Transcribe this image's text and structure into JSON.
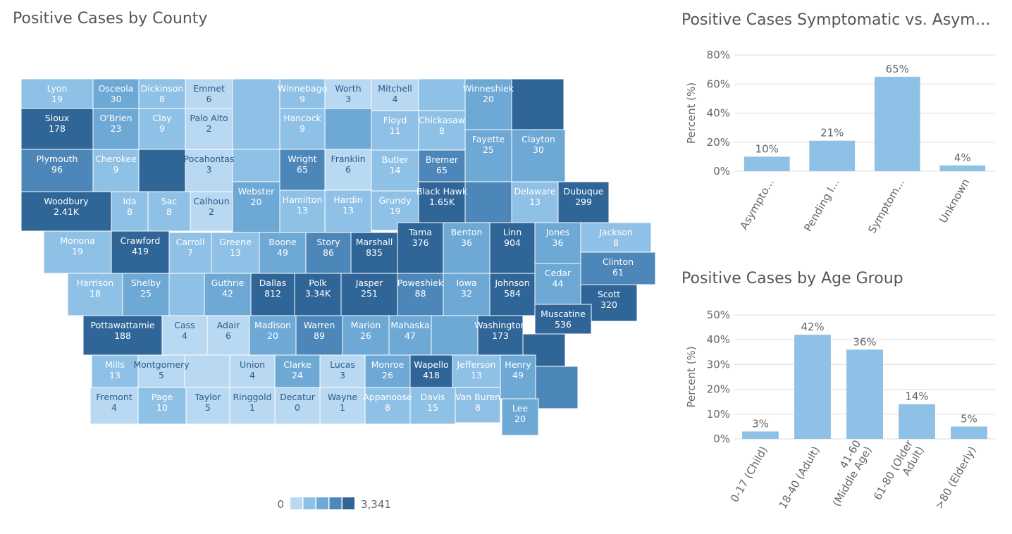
{
  "titles": {
    "map": "Positive Cases by County",
    "symptom": "Positive Cases Symptomatic vs. Asympto...",
    "age": "Positive Cases by Age Group"
  },
  "legend": {
    "min": "0",
    "max": "3,341"
  },
  "colors": {
    "scale": [
      "#b9d8f2",
      "#8fc1e6",
      "#6ea8d5",
      "#4d87ba",
      "#2f6597"
    ],
    "bar": "#8fc1e6",
    "grid": "#dddddd"
  },
  "chart_data": [
    {
      "type": "heatmap",
      "title": "Positive Cases by County",
      "range": [
        0,
        3341
      ],
      "counties": [
        {
          "name": "Lyon",
          "label": "19",
          "value": 19
        },
        {
          "name": "Osceola",
          "label": "30",
          "value": 30
        },
        {
          "name": "Dickinson",
          "label": "8",
          "value": 8
        },
        {
          "name": "Emmet",
          "label": "6",
          "value": 6
        },
        {
          "name": "Winnebago",
          "label": "9",
          "value": 9
        },
        {
          "name": "Worth",
          "label": "3",
          "value": 3
        },
        {
          "name": "Mitchell",
          "label": "4",
          "value": 4
        },
        {
          "name": "Winneshiek",
          "label": "20",
          "value": 20
        },
        {
          "name": "Sioux",
          "label": "178",
          "value": 178
        },
        {
          "name": "O'Brien",
          "label": "23",
          "value": 23
        },
        {
          "name": "Clay",
          "label": "9",
          "value": 9
        },
        {
          "name": "Palo Alto",
          "label": "2",
          "value": 2
        },
        {
          "name": "Hancock",
          "label": "9",
          "value": 9
        },
        {
          "name": "Floyd",
          "label": "11",
          "value": 11
        },
        {
          "name": "Chickasaw",
          "label": "8",
          "value": 8
        },
        {
          "name": "Fayette",
          "label": "25",
          "value": 25
        },
        {
          "name": "Clayton",
          "label": "30",
          "value": 30
        },
        {
          "name": "Plymouth",
          "label": "96",
          "value": 96
        },
        {
          "name": "Cherokee",
          "label": "9",
          "value": 9
        },
        {
          "name": "Pocahontas",
          "label": "3",
          "value": 3
        },
        {
          "name": "Wright",
          "label": "65",
          "value": 65
        },
        {
          "name": "Franklin",
          "label": "6",
          "value": 6
        },
        {
          "name": "Butler",
          "label": "14",
          "value": 14
        },
        {
          "name": "Bremer",
          "label": "65",
          "value": 65
        },
        {
          "name": "Black Hawk",
          "label": "1.65K",
          "value": 1650
        },
        {
          "name": "Delaware",
          "label": "13",
          "value": 13
        },
        {
          "name": "Dubuque",
          "label": "299",
          "value": 299
        },
        {
          "name": "Woodbury",
          "label": "2.41K",
          "value": 2410
        },
        {
          "name": "Ida",
          "label": "8",
          "value": 8
        },
        {
          "name": "Sac",
          "label": "8",
          "value": 8
        },
        {
          "name": "Calhoun",
          "label": "2",
          "value": 2
        },
        {
          "name": "Webster",
          "label": "20",
          "value": 20
        },
        {
          "name": "Hamilton",
          "label": "13",
          "value": 13
        },
        {
          "name": "Hardin",
          "label": "13",
          "value": 13
        },
        {
          "name": "Grundy",
          "label": "19",
          "value": 19
        },
        {
          "name": "Tama",
          "label": "376",
          "value": 376
        },
        {
          "name": "Benton",
          "label": "36",
          "value": 36
        },
        {
          "name": "Linn",
          "label": "904",
          "value": 904
        },
        {
          "name": "Jones",
          "label": "36",
          "value": 36
        },
        {
          "name": "Jackson",
          "label": "8",
          "value": 8
        },
        {
          "name": "Monona",
          "label": "19",
          "value": 19
        },
        {
          "name": "Crawford",
          "label": "419",
          "value": 419
        },
        {
          "name": "Carroll",
          "label": "7",
          "value": 7
        },
        {
          "name": "Greene",
          "label": "13",
          "value": 13
        },
        {
          "name": "Boone",
          "label": "49",
          "value": 49
        },
        {
          "name": "Story",
          "label": "86",
          "value": 86
        },
        {
          "name": "Marshall",
          "label": "835",
          "value": 835
        },
        {
          "name": "Clinton",
          "label": "61",
          "value": 61
        },
        {
          "name": "Cedar",
          "label": "44",
          "value": 44
        },
        {
          "name": "Harrison",
          "label": "18",
          "value": 18
        },
        {
          "name": "Shelby",
          "label": "25",
          "value": 25
        },
        {
          "name": "Guthrie",
          "label": "42",
          "value": 42
        },
        {
          "name": "Dallas",
          "label": "812",
          "value": 812
        },
        {
          "name": "Polk",
          "label": "3.34K",
          "value": 3341
        },
        {
          "name": "Jasper",
          "label": "251",
          "value": 251
        },
        {
          "name": "Poweshiek",
          "label": "88",
          "value": 88
        },
        {
          "name": "Iowa",
          "label": "32",
          "value": 32
        },
        {
          "name": "Johnson",
          "label": "584",
          "value": 584
        },
        {
          "name": "Scott",
          "label": "320",
          "value": 320
        },
        {
          "name": "Muscatine",
          "label": "536",
          "value": 536
        },
        {
          "name": "Pottawattamie",
          "label": "188",
          "value": 188
        },
        {
          "name": "Cass",
          "label": "4",
          "value": 4
        },
        {
          "name": "Adair",
          "label": "6",
          "value": 6
        },
        {
          "name": "Madison",
          "label": "20",
          "value": 20
        },
        {
          "name": "Warren",
          "label": "89",
          "value": 89
        },
        {
          "name": "Marion",
          "label": "26",
          "value": 26
        },
        {
          "name": "Mahaska",
          "label": "47",
          "value": 47
        },
        {
          "name": "Washington",
          "label": "173",
          "value": 173
        },
        {
          "name": "Mills",
          "label": "13",
          "value": 13
        },
        {
          "name": "Montgomery",
          "label": "5",
          "value": 5
        },
        {
          "name": "Union",
          "label": "4",
          "value": 4
        },
        {
          "name": "Clarke",
          "label": "24",
          "value": 24
        },
        {
          "name": "Lucas",
          "label": "3",
          "value": 3
        },
        {
          "name": "Monroe",
          "label": "26",
          "value": 26
        },
        {
          "name": "Wapello",
          "label": "418",
          "value": 418
        },
        {
          "name": "Jefferson",
          "label": "13",
          "value": 13
        },
        {
          "name": "Henry",
          "label": "49",
          "value": 49
        },
        {
          "name": "Fremont",
          "label": "4",
          "value": 4
        },
        {
          "name": "Page",
          "label": "10",
          "value": 10
        },
        {
          "name": "Taylor",
          "label": "5",
          "value": 5
        },
        {
          "name": "Ringgold",
          "label": "1",
          "value": 1
        },
        {
          "name": "Decatur",
          "label": "0",
          "value": 0
        },
        {
          "name": "Wayne",
          "label": "1",
          "value": 1
        },
        {
          "name": "Appanoose",
          "label": "8",
          "value": 8
        },
        {
          "name": "Davis",
          "label": "15",
          "value": 15
        },
        {
          "name": "Van Buren",
          "label": "8",
          "value": 8
        },
        {
          "name": "Lee",
          "label": "20",
          "value": 20
        }
      ]
    },
    {
      "type": "bar",
      "title": "Positive Cases Symptomatic vs. Asympto...",
      "ylabel": "Percent (%)",
      "ylim": [
        0,
        80
      ],
      "yticks": [
        0,
        20,
        40,
        60,
        80
      ],
      "yticklabels": [
        "0%",
        "20%",
        "40%",
        "60%",
        "80%"
      ],
      "categories": [
        "Asympto...",
        "Pending I...",
        "Symptom...",
        "Unknown"
      ],
      "values": [
        10,
        21,
        65,
        4
      ],
      "labels": [
        "10%",
        "21%",
        "65%",
        "4%"
      ]
    },
    {
      "type": "bar",
      "title": "Positive Cases by Age Group",
      "ylabel": "Percent (%)",
      "ylim": [
        0,
        50
      ],
      "yticks": [
        0,
        10,
        20,
        30,
        40,
        50
      ],
      "yticklabels": [
        "0%",
        "10%",
        "20%",
        "30%",
        "40%",
        "50%"
      ],
      "categories": [
        [
          "0-17 (Child)"
        ],
        [
          "18-40 (Adult)"
        ],
        [
          "41-60",
          "(Middle Age)"
        ],
        [
          "61-80 (Older",
          "Adult)"
        ],
        [
          ">80 (Elderly)"
        ]
      ],
      "values": [
        3,
        42,
        36,
        14,
        5
      ],
      "labels": [
        "3%",
        "42%",
        "36%",
        "14%",
        "5%"
      ]
    }
  ]
}
